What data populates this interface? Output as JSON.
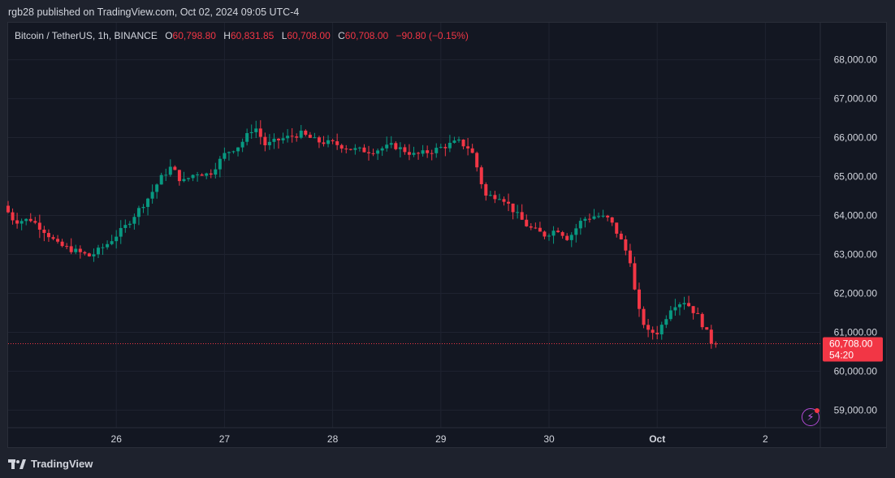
{
  "header": {
    "published_by": "rgb28 published on TradingView.com, Oct 02, 2024 09:05 UTC-4"
  },
  "legend": {
    "symbol": "Bitcoin / TetherUS, 1h, BINANCE",
    "o_label": "O",
    "o_value": "60,798.80",
    "h_label": "H",
    "h_value": "60,831.85",
    "l_label": "L",
    "l_value": "60,708.00",
    "c_label": "C",
    "c_value": "60,708.00",
    "change": "−90.80 (−0.15%)"
  },
  "price_tag": {
    "price": "60,708.00",
    "countdown": "54:20"
  },
  "footer": {
    "brand": "TradingView"
  },
  "colors": {
    "up": "#089981",
    "down": "#f23645",
    "grid": "#1f2330",
    "background": "#131722",
    "text": "#d1d4dc"
  },
  "chart_data": {
    "type": "candlestick",
    "title": "Bitcoin / TetherUS, 1h, BINANCE",
    "xlabel": "",
    "ylabel": "",
    "y_ticks": [
      "68,000.00",
      "67,000.00",
      "66,000.00",
      "65,000.00",
      "64,000.00",
      "63,000.00",
      "62,000.00",
      "61,000.00",
      "60,000.00",
      "59,000.00"
    ],
    "y_tick_values": [
      68000,
      67000,
      66000,
      65000,
      64000,
      63000,
      62000,
      61000,
      60000,
      59000
    ],
    "ylim": [
      58550,
      68950
    ],
    "x_ticks": [
      "26",
      "27",
      "28",
      "29",
      "30",
      "Oct",
      "2"
    ],
    "x_tick_times": [
      25.5,
      26.5,
      27.5,
      28.5,
      29.5,
      30.5,
      31.5
    ],
    "xlim": [
      24.5,
      32.0
    ],
    "grid": true,
    "current_price": 60708,
    "anchors": [
      [
        24.5,
        64250
      ],
      [
        24.6,
        63850
      ],
      [
        24.75,
        63900
      ],
      [
        24.88,
        63600
      ],
      [
        25.0,
        63250
      ],
      [
        25.15,
        63100
      ],
      [
        25.3,
        62950
      ],
      [
        25.45,
        63250
      ],
      [
        25.62,
        63700
      ],
      [
        25.72,
        64050
      ],
      [
        25.85,
        64500
      ],
      [
        25.95,
        64950
      ],
      [
        26.05,
        65250
      ],
      [
        26.15,
        64850
      ],
      [
        26.28,
        65100
      ],
      [
        26.4,
        65050
      ],
      [
        26.55,
        65600
      ],
      [
        26.68,
        65800
      ],
      [
        26.82,
        66300
      ],
      [
        26.92,
        65800
      ],
      [
        27.05,
        65950
      ],
      [
        27.25,
        66100
      ],
      [
        27.4,
        65900
      ],
      [
        27.55,
        65850
      ],
      [
        27.72,
        65700
      ],
      [
        27.9,
        65650
      ],
      [
        28.1,
        65800
      ],
      [
        28.3,
        65550
      ],
      [
        28.45,
        65650
      ],
      [
        28.6,
        65800
      ],
      [
        28.7,
        65900
      ],
      [
        28.82,
        65700
      ],
      [
        28.88,
        65200
      ],
      [
        28.95,
        64500
      ],
      [
        29.1,
        64500
      ],
      [
        29.22,
        64100
      ],
      [
        29.35,
        63700
      ],
      [
        29.5,
        63500
      ],
      [
        29.62,
        63650
      ],
      [
        29.72,
        63400
      ],
      [
        29.85,
        63900
      ],
      [
        29.98,
        64000
      ],
      [
        30.1,
        63900
      ],
      [
        30.2,
        63400
      ],
      [
        30.3,
        62800
      ],
      [
        30.35,
        61700
      ],
      [
        30.45,
        61000
      ],
      [
        30.55,
        61000
      ],
      [
        30.68,
        61700
      ],
      [
        30.8,
        61800
      ],
      [
        30.92,
        61400
      ],
      [
        30.98,
        61100
      ],
      [
        31.05,
        60708
      ]
    ]
  }
}
